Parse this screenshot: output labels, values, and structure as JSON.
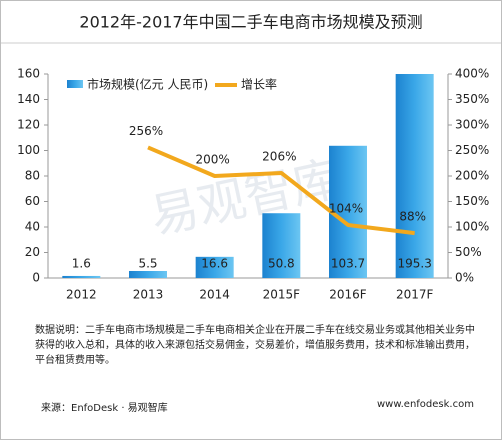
{
  "chart_data": {
    "type": "bar",
    "title": "2012年-2017年中国二手车电商市场规模及预测",
    "categories": [
      "2012",
      "2013",
      "2014",
      "2015F",
      "2016F",
      "2017F"
    ],
    "series": [
      {
        "name": "市场规模(亿元 人民币)",
        "type": "bar",
        "color": "#2e9be0",
        "values": [
          1.6,
          5.5,
          16.6,
          50.8,
          103.7,
          195.3
        ]
      },
      {
        "name": "增长率",
        "type": "line",
        "axis": "y2",
        "color": "#f2a81d",
        "values": [
          null,
          256,
          200,
          206,
          104,
          88
        ],
        "value_labels": [
          null,
          "256%",
          "200%",
          "206%",
          "104%",
          "88%"
        ]
      }
    ],
    "ylim": [
      0,
      160
    ],
    "yticks": [
      0,
      20,
      40,
      60,
      80,
      100,
      120,
      140,
      160
    ],
    "y2lim": [
      0,
      400
    ],
    "y2ticks": [
      {
        "value": 0,
        "label": "0%"
      },
      {
        "value": 50,
        "label": "50%"
      },
      {
        "value": 100,
        "label": "100%"
      },
      {
        "value": 150,
        "label": "150%"
      },
      {
        "value": 200,
        "label": "200%"
      },
      {
        "value": 250,
        "label": "250%"
      },
      {
        "value": 300,
        "label": "300%"
      },
      {
        "value": 350,
        "label": "350%"
      },
      {
        "value": 400,
        "label": "400%"
      }
    ],
    "grid": false,
    "watermark": "易观智库",
    "note": "数据说明：二手车电商市场规模是二手车电商相关企业在开展二手车在线交易业务或其他相关业务中获得的收入总和，具体的收入来源包括交易佣金，交易差价，增值服务费用，技术和标准输出费用，平台租赁费用等。",
    "source": "来源：EnfoDesk · 易观智库",
    "website": "www.enfodesk.com"
  }
}
